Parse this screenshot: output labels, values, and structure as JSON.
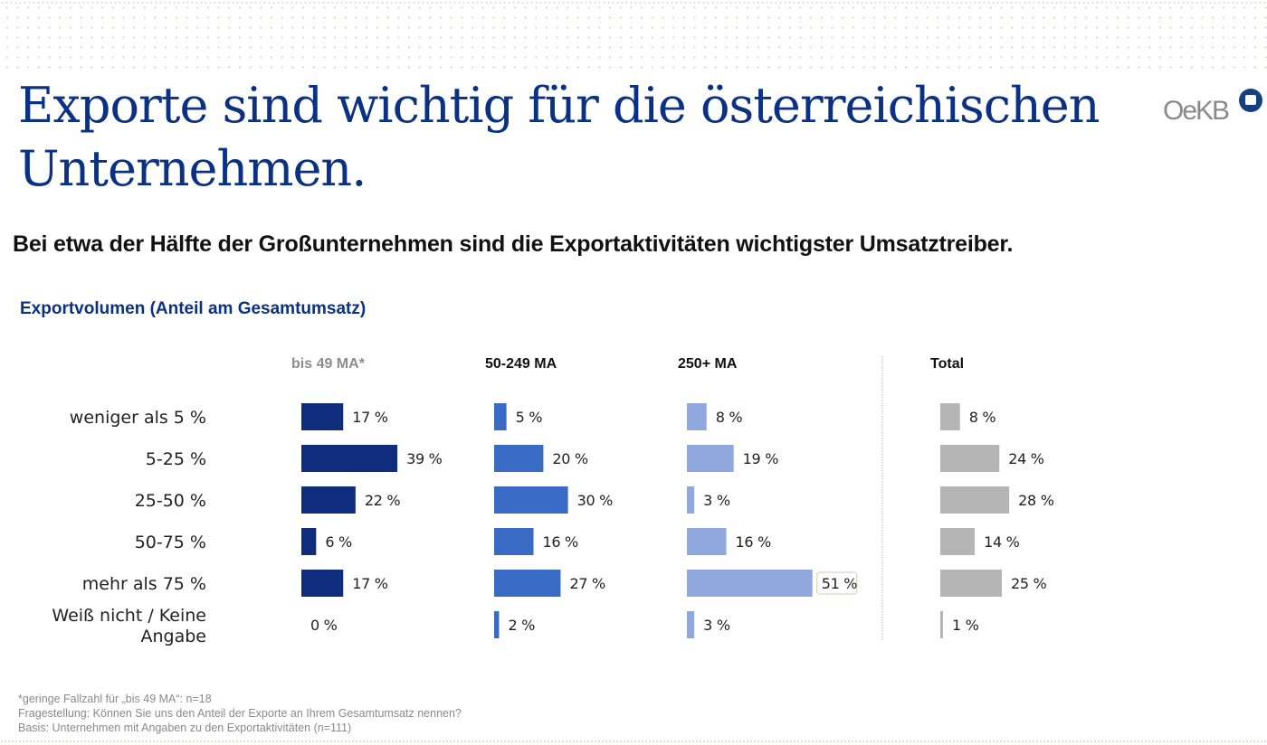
{
  "slide": {
    "title": "Exporte sind wichtig für die österreichischen Unternehmen.",
    "logo_text": "OeKB",
    "subtitle": "Bei etwa der Hälfte der Großunternehmen sind die Exportaktivitäten wichtigster Umsatztreiber.",
    "footnotes": [
      "*geringe Fallzahl für „bis 49 MA“: n=18",
      "Fragestellung: Können Sie uns den Anteil der Exporte an Ihrem Gesamtumsatz nennen?",
      "Basis: Unternehmen mit Angaben zu den Exportaktivitäten (n=111)"
    ]
  },
  "chart_data": {
    "type": "bar",
    "orientation": "horizontal",
    "title": "Exportvolumen (Anteil am Gesamtumsatz)",
    "xlabel": "",
    "ylabel": "",
    "unit": "%",
    "categories": [
      "weniger als 5 %",
      "5-25 %",
      "25-50 %",
      "50-75 %",
      "mehr als 75 %",
      "Weiß nicht / Keine Angabe"
    ],
    "series": [
      {
        "name": "bis 49 MA*",
        "header_color": "#8c8c8c",
        "color": "#0f2d7c",
        "values": [
          17,
          39,
          22,
          6,
          17,
          0
        ]
      },
      {
        "name": "50-249 MA",
        "header_color": "#111111",
        "color": "#3a6bc4",
        "values": [
          5,
          20,
          30,
          16,
          27,
          2
        ]
      },
      {
        "name": "250+ MA",
        "header_color": "#111111",
        "color": "#8fa9df",
        "values": [
          8,
          19,
          3,
          16,
          51,
          3
        ],
        "highlight_index": 4
      },
      {
        "name": "Total",
        "header_color": "#111111",
        "color": "#b5b5b5",
        "values": [
          8,
          24,
          28,
          14,
          25,
          1
        ]
      }
    ],
    "value_format": "{v} %",
    "separator_before_series": 3,
    "grid": false,
    "legend": "column-headers"
  }
}
